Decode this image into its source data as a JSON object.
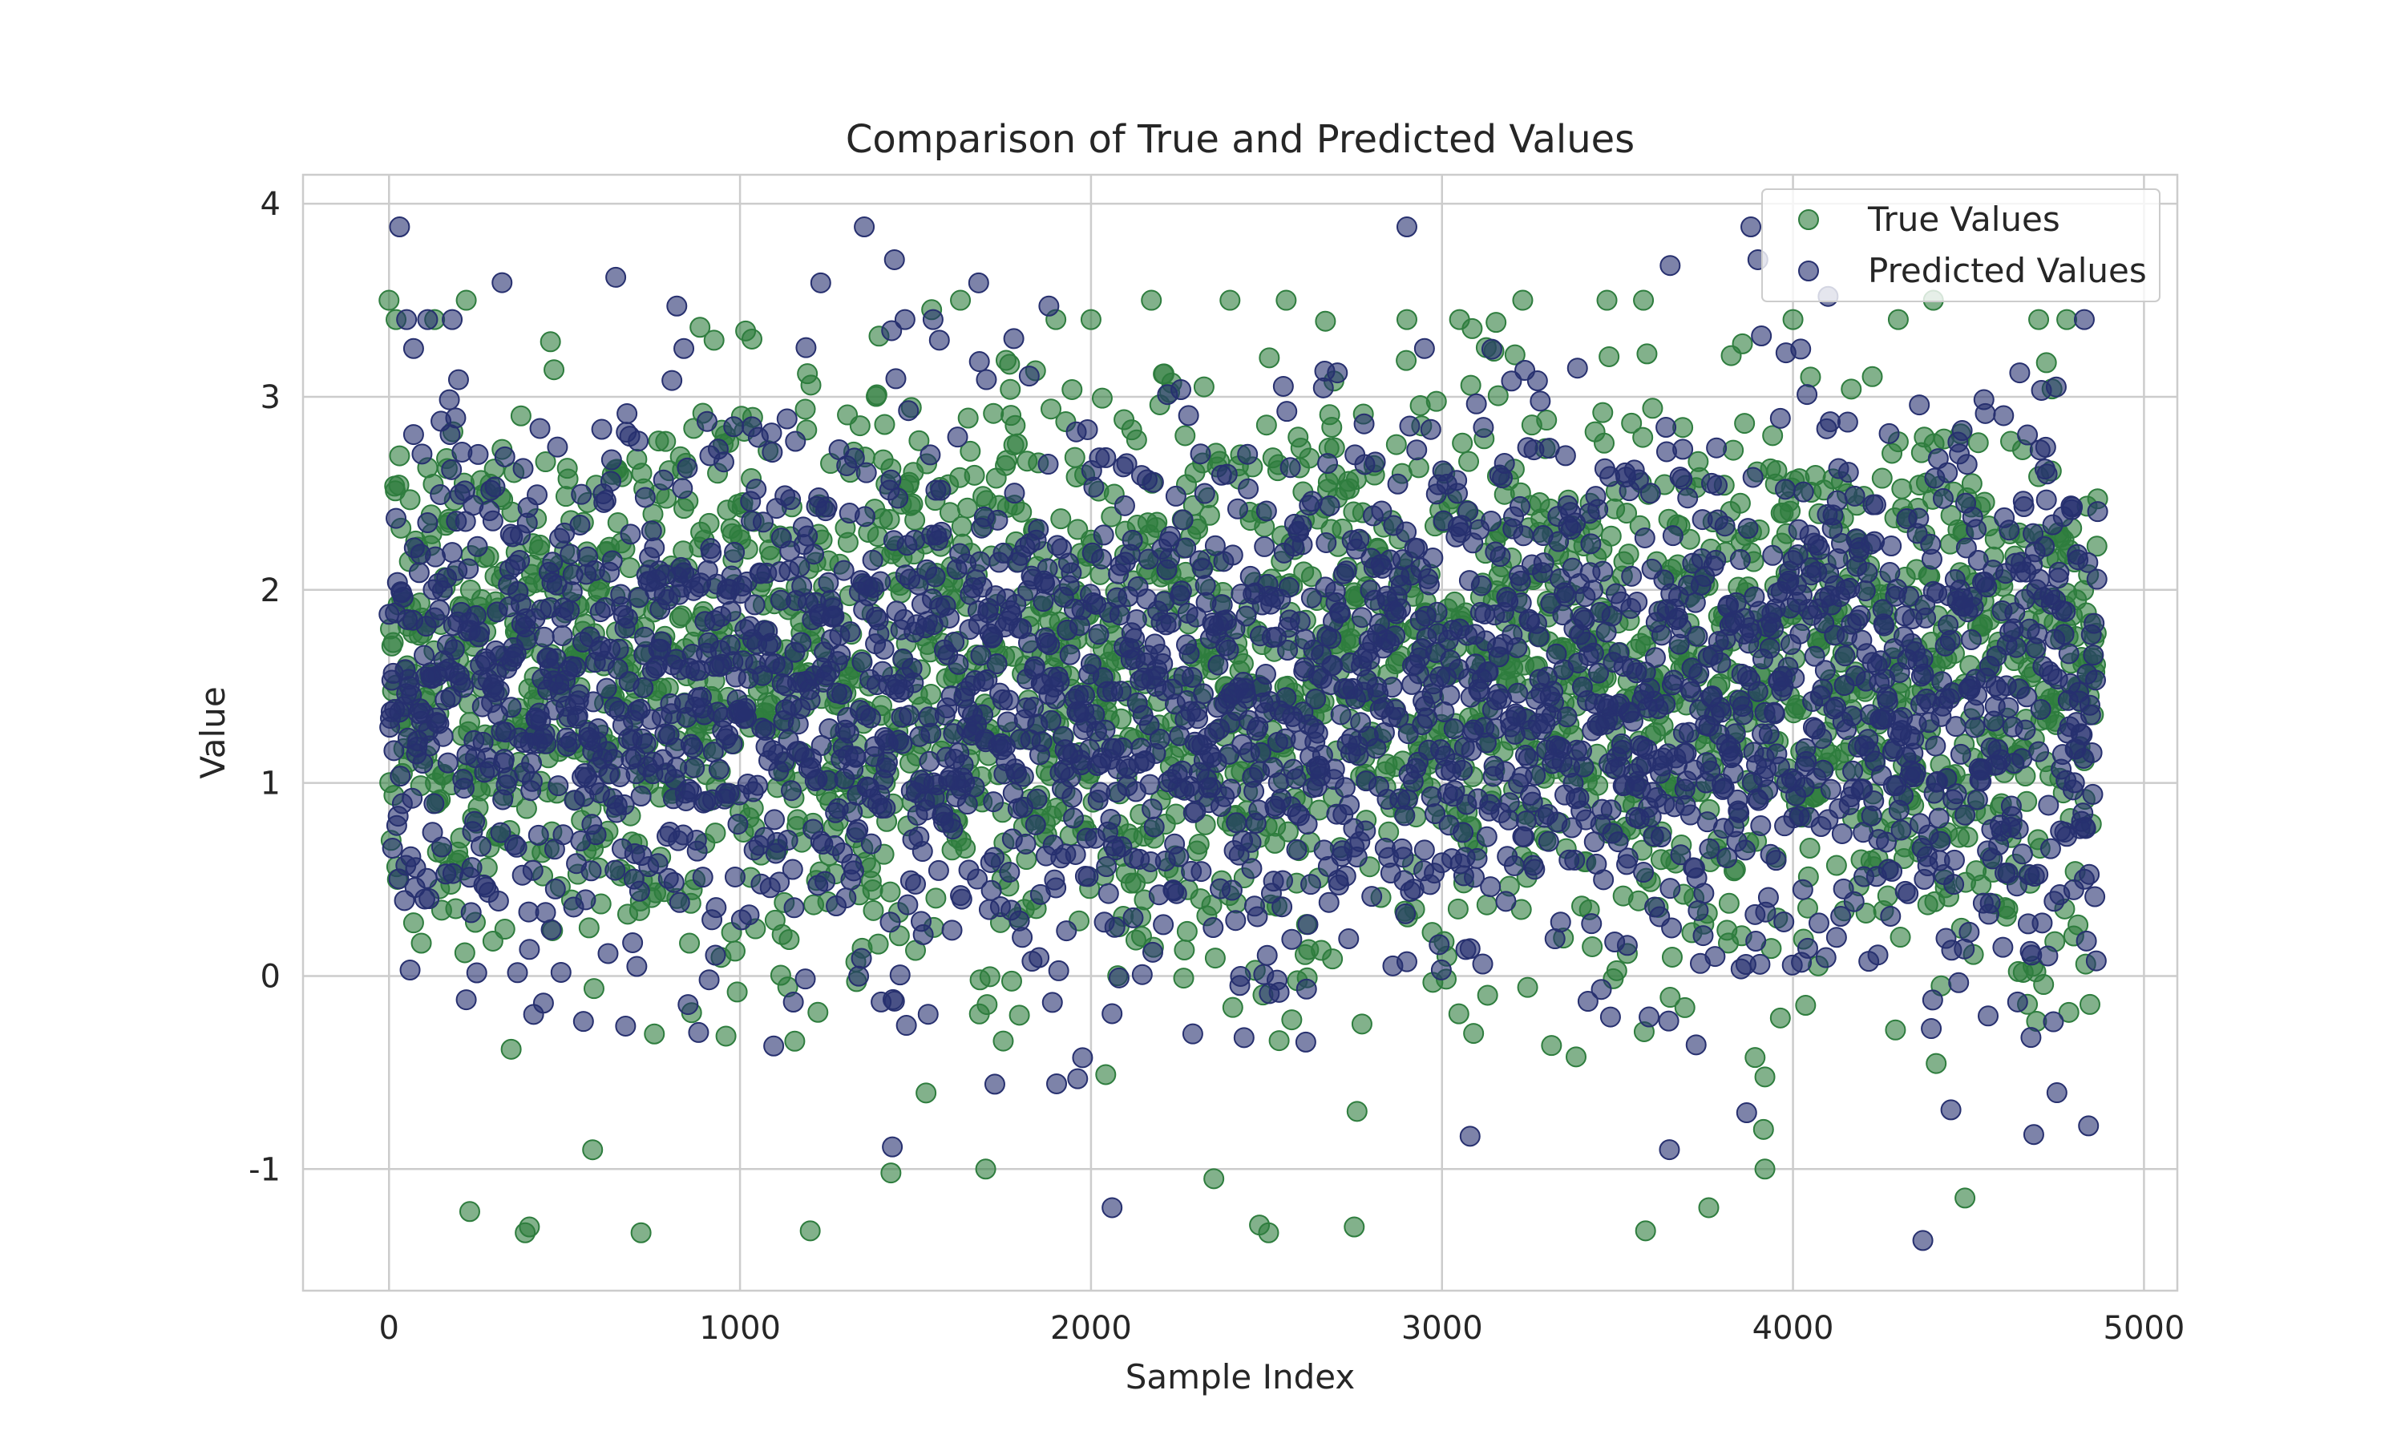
{
  "chart_data": {
    "type": "scatter",
    "title": "Comparison of True and Predicted Values",
    "xlabel": "Sample Index",
    "ylabel": "Value",
    "xlim": [
      -245,
      5095
    ],
    "ylim": [
      -1.63,
      4.15
    ],
    "xticks": [
      0,
      1000,
      2000,
      3000,
      4000,
      5000
    ],
    "xtick_labels": [
      "0",
      "1000",
      "2000",
      "3000",
      "4000",
      "5000"
    ],
    "yticks": [
      -1,
      0,
      1,
      2,
      3,
      4
    ],
    "ytick_labels": [
      "-1",
      "0",
      "1",
      "2",
      "3",
      "4"
    ],
    "grid": true,
    "legend_placement": "top-right",
    "n_samples": 4870,
    "series": [
      {
        "name": "True Values",
        "color": "#2e7d3e",
        "alpha": 0.6,
        "distribution": {
          "center": 1.55,
          "spread": 0.75,
          "min": -1.33,
          "max": 3.5
        },
        "highlighted_points": [
          [
            20,
            3.4
          ],
          [
            130,
            3.4
          ],
          [
            220,
            3.5
          ],
          [
            230,
            -1.22
          ],
          [
            400,
            -1.3
          ],
          [
            470,
            3.14
          ],
          [
            580,
            -0.9
          ],
          [
            1200,
            -1.32
          ],
          [
            1430,
            -1.02
          ],
          [
            1700,
            -1.0
          ],
          [
            1900,
            3.4
          ],
          [
            2000,
            3.4
          ],
          [
            2350,
            -1.05
          ],
          [
            2480,
            -1.29
          ],
          [
            2750,
            -1.3
          ],
          [
            2900,
            3.4
          ],
          [
            3050,
            3.4
          ],
          [
            3230,
            3.5
          ],
          [
            3470,
            3.5
          ],
          [
            3580,
            -1.32
          ],
          [
            3760,
            -1.2
          ],
          [
            3920,
            -1.0
          ],
          [
            4000,
            3.4
          ],
          [
            4300,
            3.4
          ],
          [
            4400,
            3.5
          ],
          [
            4490,
            -1.15
          ],
          [
            4700,
            3.4
          ],
          [
            4780,
            3.4
          ]
        ]
      },
      {
        "name": "Predicted Values",
        "color": "#27306f",
        "alpha": 0.6,
        "distribution": {
          "center": 1.45,
          "spread": 0.7,
          "min": -1.37,
          "max": 3.88
        },
        "highlighted_points": [
          [
            30,
            3.88
          ],
          [
            50,
            3.4
          ],
          [
            70,
            3.25
          ],
          [
            110,
            3.4
          ],
          [
            180,
            3.4
          ],
          [
            820,
            3.47
          ],
          [
            840,
            3.25
          ],
          [
            1230,
            3.59
          ],
          [
            1440,
            3.71
          ],
          [
            1470,
            3.4
          ],
          [
            1550,
            3.4
          ],
          [
            1680,
            3.59
          ],
          [
            1880,
            3.47
          ],
          [
            2060,
            -1.2
          ],
          [
            2900,
            3.88
          ],
          [
            2950,
            3.25
          ],
          [
            3080,
            -0.83
          ],
          [
            3650,
            3.68
          ],
          [
            3900,
            3.71
          ],
          [
            4100,
            3.52
          ],
          [
            4370,
            -1.37
          ],
          [
            4830,
            3.4
          ]
        ]
      }
    ]
  }
}
